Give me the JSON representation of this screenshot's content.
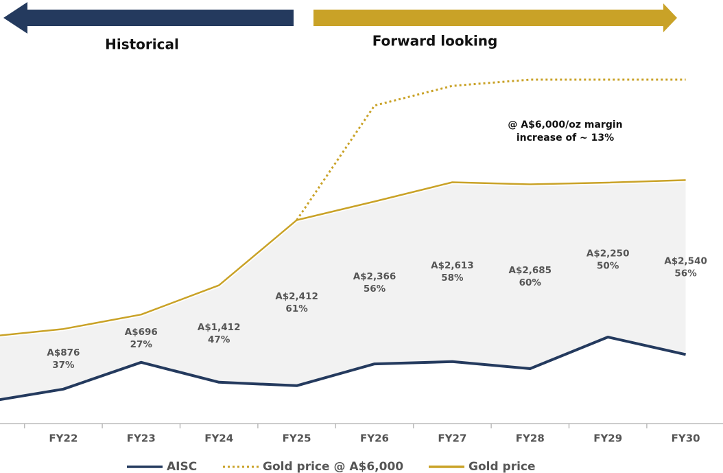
{
  "chart_data": {
    "type": "line",
    "header_left": "Historical",
    "header_right": "Forward looking",
    "annotation": [
      "@ A$6,000/oz margin",
      "increase of ~ 13%"
    ],
    "categories": [
      null,
      "FY22",
      "FY23",
      "FY24",
      "FY25",
      "FY26",
      "FY27",
      "FY28",
      "FY29",
      "FY30"
    ],
    "ylim": [
      1000,
      6000
    ],
    "series": [
      {
        "name": "AISC",
        "color": "#243a5e",
        "style": "solid",
        "values": [
          1304,
          1492,
          1882,
          1592,
          1542,
          1859,
          1892,
          1790,
          2250,
          1996
        ]
      },
      {
        "name": "Gold price @ A$6,000",
        "color": "#c9a227",
        "style": "dotted",
        "values": [
          null,
          null,
          null,
          null,
          3954,
          5623,
          5909,
          6000,
          6000,
          6000
        ]
      },
      {
        "name": "Gold price",
        "color": "#c9a227",
        "style": "solid",
        "values": [
          2253,
          2368,
          2578,
          3004,
          3954,
          4225,
          4505,
          4475,
          4500,
          4536
        ]
      }
    ],
    "margins": {
      "values": [
        null,
        876,
        696,
        1412,
        2412,
        2366,
        2613,
        2685,
        2250,
        2540
      ],
      "value_labels": [
        null,
        "A$876",
        "A$696",
        "A$1,412",
        "A$2,412",
        "A$2,366",
        "A$2,613",
        "A$2,685",
        "A$2,250",
        "A$2,540"
      ]
    },
    "margin_pct": {
      "values": [
        null,
        37,
        27,
        47,
        61,
        56,
        58,
        60,
        50,
        56
      ],
      "value_labels": [
        null,
        "37%",
        "27%",
        "47%",
        "61%",
        "56%",
        "58%",
        "60%",
        "50%",
        "56%"
      ]
    }
  }
}
